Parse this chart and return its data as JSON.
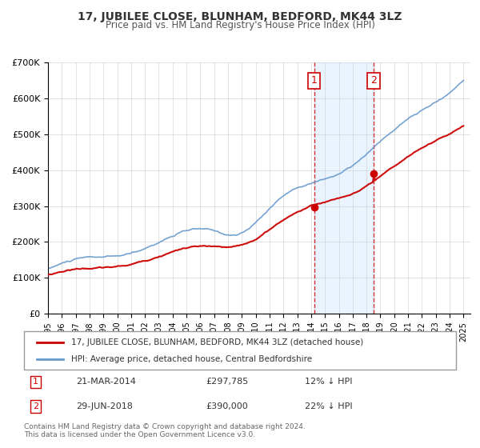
{
  "title": "17, JUBILEE CLOSE, BLUNHAM, BEDFORD, MK44 3LZ",
  "subtitle": "Price paid vs. HM Land Registry's House Price Index (HPI)",
  "xlabel": "",
  "ylabel": "",
  "background_color": "#ffffff",
  "plot_bg_color": "#ffffff",
  "grid_color": "#cccccc",
  "xmin": 1995.0,
  "xmax": 2025.5,
  "ymin": 0,
  "ymax": 700000,
  "sale1_x": 2014.22,
  "sale1_y": 297785,
  "sale1_label": "1",
  "sale1_date": "21-MAR-2014",
  "sale1_price": "£297,785",
  "sale1_hpi": "12% ↓ HPI",
  "sale2_x": 2018.5,
  "sale2_y": 390000,
  "sale2_label": "2",
  "sale2_date": "29-JUN-2018",
  "sale2_price": "£390,000",
  "sale2_hpi": "22% ↓ HPI",
  "property_color": "#cc0000",
  "hpi_color": "#6699cc",
  "hpi_fill_color": "#ddeeff",
  "legend_property_label": "17, JUBILEE CLOSE, BLUNHAM, BEDFORD, MK44 3LZ (detached house)",
  "legend_hpi_label": "HPI: Average price, detached house, Central Bedfordshire",
  "footer1": "Contains HM Land Registry data © Crown copyright and database right 2024.",
  "footer2": "This data is licensed under the Open Government Licence v3.0.",
  "yticks": [
    0,
    100000,
    200000,
    300000,
    400000,
    500000,
    600000,
    700000
  ],
  "ytick_labels": [
    "£0",
    "£100K",
    "£200K",
    "£300K",
    "£400K",
    "£500K",
    "£600K",
    "£700K"
  ]
}
